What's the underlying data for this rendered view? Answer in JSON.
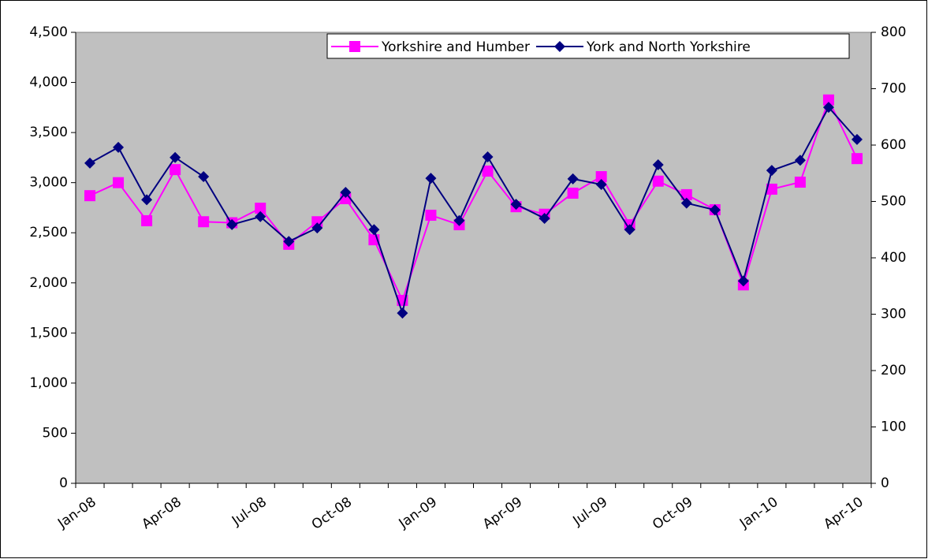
{
  "chart_data": {
    "type": "line",
    "categories": [
      "Jan-08",
      null,
      null,
      "Apr-08",
      null,
      null,
      "Jul-08",
      null,
      null,
      "Oct-08",
      null,
      null,
      "Jan-09",
      null,
      null,
      "Apr-09",
      null,
      null,
      "Jul-09",
      null,
      null,
      "Oct-09",
      null,
      null,
      "Jan-10",
      null,
      null,
      "Apr-10"
    ],
    "series": [
      {
        "name": "Yorkshire and Humber",
        "color": "#ff00ff",
        "marker": "square",
        "values": [
          2870,
          3000,
          2620,
          3130,
          2610,
          2600,
          2745,
          2385,
          2610,
          2840,
          2430,
          1825,
          2675,
          2580,
          3115,
          2760,
          2685,
          2895,
          3060,
          2580,
          3015,
          2880,
          2730,
          1980,
          2935,
          3005,
          3825,
          3240
        ]
      },
      {
        "name": "York and North Yorkshire",
        "color": "#000080",
        "marker": "diamond",
        "axis": "y2",
        "values": [
          568,
          596,
          503,
          578,
          544,
          459,
          473,
          429,
          453,
          516,
          450,
          302,
          541,
          466,
          579,
          495,
          470,
          540,
          530,
          450,
          565,
          497,
          485,
          359,
          555,
          573,
          667,
          610
        ]
      }
    ],
    "ylim": [
      0,
      4500
    ],
    "yticks": [
      0,
      500,
      {
        "value": 1000,
        "label": "1,000"
      },
      {
        "value": 1500,
        "label": "1,500"
      },
      {
        "value": 2000,
        "label": "2,000"
      },
      {
        "value": 2500,
        "label": "2,500"
      },
      {
        "value": 3000,
        "label": "3,000"
      },
      {
        "value": 3500,
        "label": "3,500"
      },
      {
        "value": 4000,
        "label": "4,000"
      },
      {
        "value": 4500,
        "label": "4,500"
      }
    ],
    "y2lim": [
      0,
      800
    ],
    "y2ticks": [
      0,
      100,
      200,
      300,
      400,
      500,
      600,
      700,
      800
    ],
    "legend": "top-right",
    "plot_background": "#c0c0c0"
  }
}
